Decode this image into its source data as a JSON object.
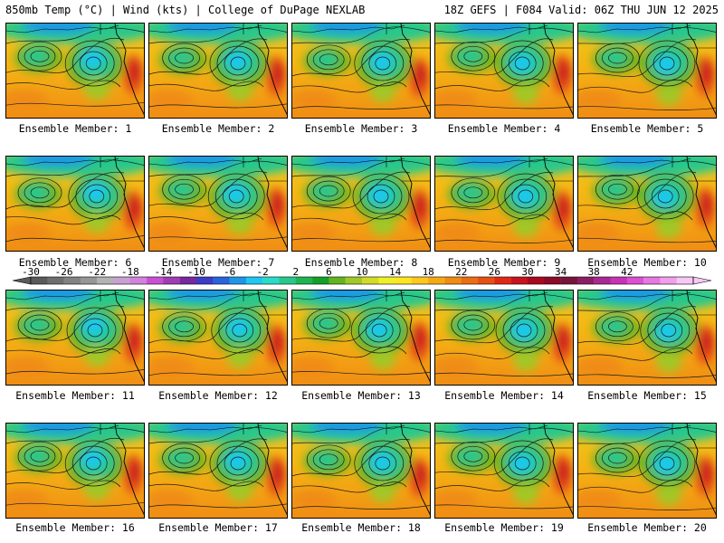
{
  "header": {
    "left": "850mb Temp (°C) | Wind (kts) | College of DuPage NEXLAB",
    "right": "18Z GEFS | F084 Valid: 06Z THU JUN 12 2025"
  },
  "colorbar": {
    "labels": [
      "-30",
      "-26",
      "-22",
      "-18",
      "-14",
      "-10",
      "-6",
      "-2",
      "2",
      "6",
      "10",
      "14",
      "18",
      "22",
      "26",
      "30",
      "34",
      "38",
      "42"
    ],
    "colors": [
      "#5a5a5a",
      "#6e6e6e",
      "#828282",
      "#969696",
      "#b4b4b4",
      "#c8a0d2",
      "#d282dc",
      "#c850d2",
      "#a03cb4",
      "#7828a0",
      "#3c3cc8",
      "#2864dc",
      "#1e96e6",
      "#1ec8f0",
      "#28dcc8",
      "#28c88c",
      "#1eb450",
      "#14a028",
      "#64b41e",
      "#a0c828",
      "#d2dc28",
      "#f0f028",
      "#ffe61e",
      "#ffc81e",
      "#f5aa14",
      "#f08c14",
      "#eb6e14",
      "#e65014",
      "#e12814",
      "#c8141e",
      "#aa0a1e",
      "#8c0a28",
      "#78143c",
      "#8c1e64",
      "#aa2896",
      "#c832b4",
      "#dc50d2",
      "#e678e1",
      "#f0a0eb",
      "#f5c8f5"
    ]
  },
  "panels": [
    {
      "member": 1,
      "label": "Ensemble Member: 1"
    },
    {
      "member": 2,
      "label": "Ensemble Member: 2"
    },
    {
      "member": 3,
      "label": "Ensemble Member: 3"
    },
    {
      "member": 4,
      "label": "Ensemble Member: 4"
    },
    {
      "member": 5,
      "label": "Ensemble Member: 5"
    },
    {
      "member": 6,
      "label": "Ensemble Member: 6"
    },
    {
      "member": 7,
      "label": "Ensemble Member: 7"
    },
    {
      "member": 8,
      "label": "Ensemble Member: 8"
    },
    {
      "member": 9,
      "label": "Ensemble Member: 9"
    },
    {
      "member": 10,
      "label": "Ensemble Member: 10"
    },
    {
      "member": 11,
      "label": "Ensemble Member: 11"
    },
    {
      "member": 12,
      "label": "Ensemble Member: 12"
    },
    {
      "member": 13,
      "label": "Ensemble Member: 13"
    },
    {
      "member": 14,
      "label": "Ensemble Member: 14"
    },
    {
      "member": 15,
      "label": "Ensemble Member: 15"
    },
    {
      "member": 16,
      "label": "Ensemble Member: 16"
    },
    {
      "member": 17,
      "label": "Ensemble Member: 17"
    },
    {
      "member": 18,
      "label": "Ensemble Member: 18"
    },
    {
      "member": 19,
      "label": "Ensemble Member: 19"
    },
    {
      "member": 20,
      "label": "Ensemble Member: 20"
    }
  ]
}
